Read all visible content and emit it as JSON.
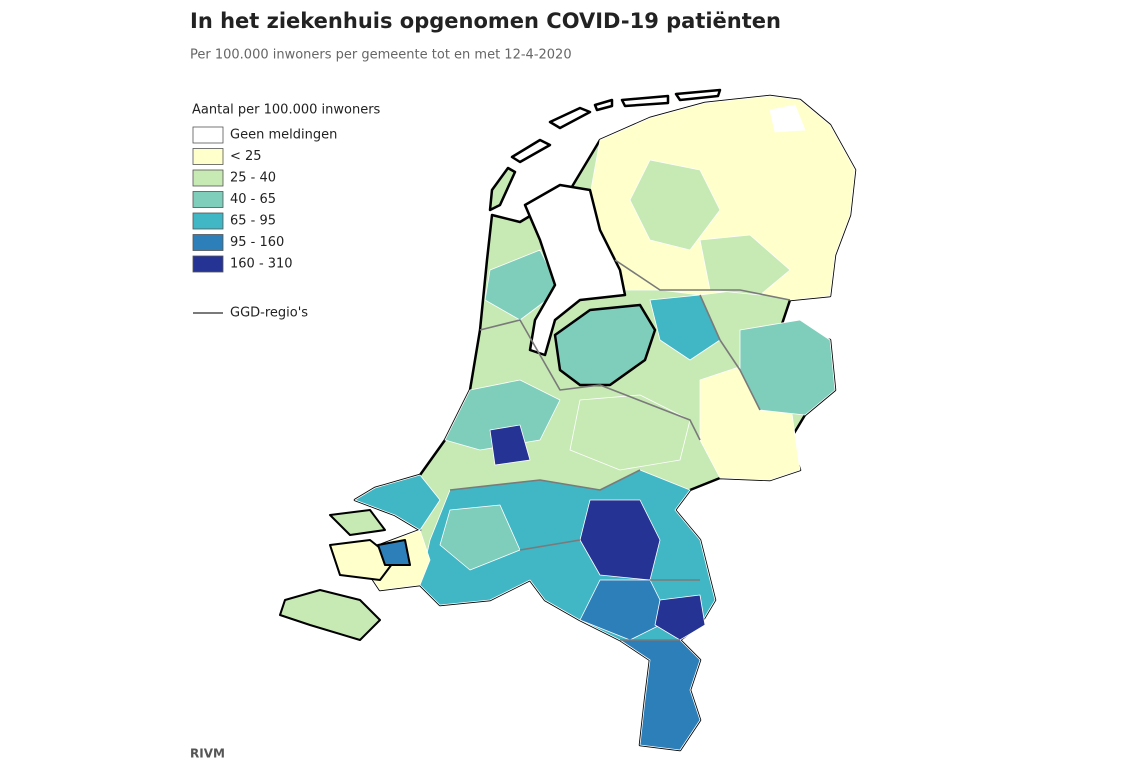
{
  "header": {
    "title": "In het ziekenhuis opgenomen COVID-19 patiënten",
    "subtitle": "Per 100.000 inwoners per gemeente tot en met 12-4-2020"
  },
  "legend": {
    "title": "Aantal per 100.000 inwoners",
    "items": [
      {
        "label": "Geen meldingen",
        "color": "#ffffff"
      },
      {
        "label": "< 25",
        "color": "#ffffcc"
      },
      {
        "label": "25 - 40",
        "color": "#c7e9b4"
      },
      {
        "label": "40 - 65",
        "color": "#7fcdbb"
      },
      {
        "label": "65 - 95",
        "color": "#41b6c4"
      },
      {
        "label": "95 - 160",
        "color": "#2c7fb8"
      },
      {
        "label": "160 - 310",
        "color": "#253494"
      }
    ],
    "line_label": "GGD-regio's",
    "line_color": "#7a7a7a"
  },
  "source": "RIVM"
}
